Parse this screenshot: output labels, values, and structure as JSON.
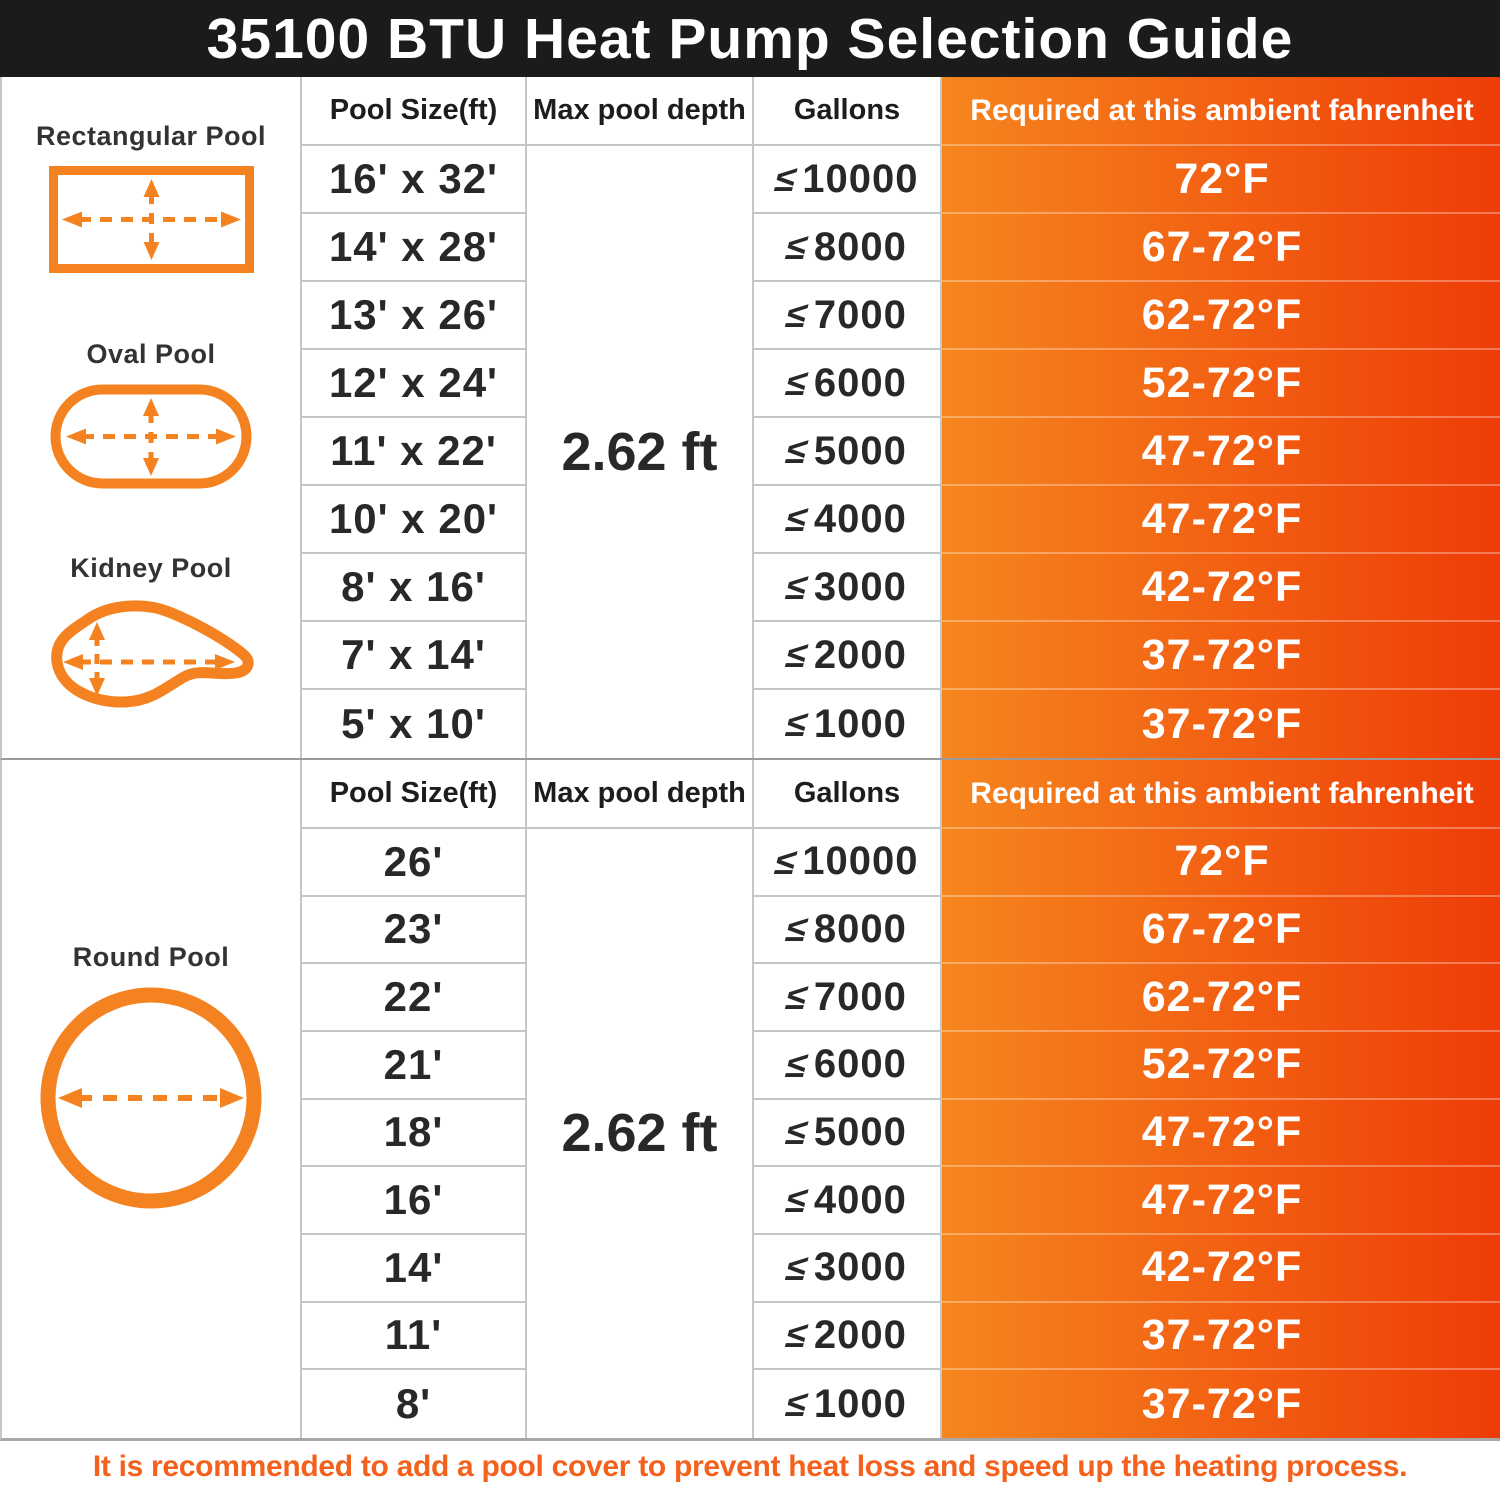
{
  "header": {
    "title": "35100 BTU Heat Pump Selection Guide"
  },
  "columns": [
    "Pool Size(ft)",
    "Max pool depth",
    "Gallons",
    "Required at this ambient fahrenheit"
  ],
  "le_symbol": "≤",
  "sections": [
    {
      "pools": [
        {
          "name": "Rectangular Pool",
          "icon": "rectangular-pool-icon"
        },
        {
          "name": "Oval Pool",
          "icon": "oval-pool-icon"
        },
        {
          "name": "Kidney Pool",
          "icon": "kidney-pool-icon"
        }
      ],
      "max_depth": "2.62 ft",
      "rows": [
        {
          "size": "16' x 32'",
          "gallons": "10000",
          "temp": "72°F"
        },
        {
          "size": "14' x 28'",
          "gallons": "8000",
          "temp": "67-72°F"
        },
        {
          "size": "13' x 26'",
          "gallons": "7000",
          "temp": "62-72°F"
        },
        {
          "size": "12' x 24'",
          "gallons": "6000",
          "temp": "52-72°F"
        },
        {
          "size": "11' x 22'",
          "gallons": "5000",
          "temp": "47-72°F"
        },
        {
          "size": "10' x 20'",
          "gallons": "4000",
          "temp": "47-72°F"
        },
        {
          "size": "8' x 16'",
          "gallons": "3000",
          "temp": "42-72°F"
        },
        {
          "size": "7' x 14'",
          "gallons": "2000",
          "temp": "37-72°F"
        },
        {
          "size": "5' x 10'",
          "gallons": "1000",
          "temp": "37-72°F"
        }
      ]
    },
    {
      "pools": [
        {
          "name": "Round Pool",
          "icon": "round-pool-icon"
        }
      ],
      "max_depth": "2.62 ft",
      "rows": [
        {
          "size": "26'",
          "gallons": "10000",
          "temp": "72°F"
        },
        {
          "size": "23'",
          "gallons": "8000",
          "temp": "67-72°F"
        },
        {
          "size": "22'",
          "gallons": "7000",
          "temp": "62-72°F"
        },
        {
          "size": "21'",
          "gallons": "6000",
          "temp": "52-72°F"
        },
        {
          "size": "18'",
          "gallons": "5000",
          "temp": "47-72°F"
        },
        {
          "size": "16'",
          "gallons": "4000",
          "temp": "47-72°F"
        },
        {
          "size": "14'",
          "gallons": "3000",
          "temp": "42-72°F"
        },
        {
          "size": "11'",
          "gallons": "2000",
          "temp": "37-72°F"
        },
        {
          "size": "8'",
          "gallons": "1000",
          "temp": "37-72°F"
        }
      ]
    }
  ],
  "footer": {
    "note": "It is recommended to add a pool cover to prevent heat loss and speed up the heating process."
  },
  "colors": {
    "header_bg": "#1b1b1b",
    "accent": "#f58220",
    "gradient_left": "#f6861e",
    "gradient_right": "#ee3c07",
    "footer_text": "#f4611c"
  }
}
